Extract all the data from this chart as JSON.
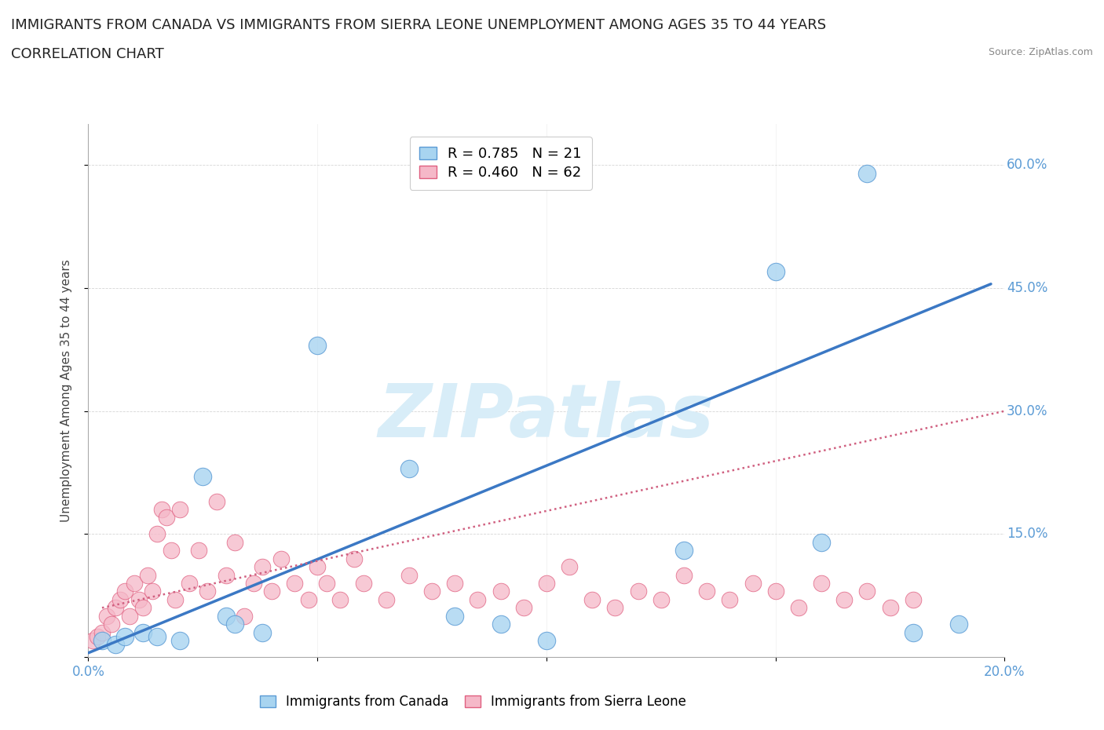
{
  "title_line1": "IMMIGRANTS FROM CANADA VS IMMIGRANTS FROM SIERRA LEONE UNEMPLOYMENT AMONG AGES 35 TO 44 YEARS",
  "title_line2": "CORRELATION CHART",
  "source_text": "Source: ZipAtlas.com",
  "ylabel": "Unemployment Among Ages 35 to 44 years",
  "xlim": [
    0.0,
    0.2
  ],
  "ylim": [
    0.0,
    0.65
  ],
  "xticks": [
    0.0,
    0.05,
    0.1,
    0.15,
    0.2
  ],
  "xtick_labels": [
    "0.0%",
    "",
    "",
    "",
    "20.0%"
  ],
  "yticks": [
    0.0,
    0.15,
    0.3,
    0.45,
    0.6
  ],
  "ytick_labels": [
    "",
    "15.0%",
    "30.0%",
    "45.0%",
    "60.0%"
  ],
  "legend_blue_text": "R = 0.785   N = 21",
  "legend_pink_text": "R = 0.460   N = 62",
  "legend_label_blue": "Immigrants from Canada",
  "legend_label_pink": "Immigrants from Sierra Leone",
  "blue_scatter_x": [
    0.003,
    0.006,
    0.008,
    0.012,
    0.015,
    0.02,
    0.025,
    0.03,
    0.032,
    0.038,
    0.05,
    0.07,
    0.08,
    0.09,
    0.1,
    0.13,
    0.15,
    0.16,
    0.17,
    0.18,
    0.19
  ],
  "blue_scatter_y": [
    0.02,
    0.015,
    0.025,
    0.03,
    0.025,
    0.02,
    0.22,
    0.05,
    0.04,
    0.03,
    0.38,
    0.23,
    0.05,
    0.04,
    0.02,
    0.13,
    0.47,
    0.14,
    0.59,
    0.03,
    0.04
  ],
  "pink_scatter_x": [
    0.001,
    0.002,
    0.003,
    0.004,
    0.005,
    0.006,
    0.007,
    0.008,
    0.009,
    0.01,
    0.011,
    0.012,
    0.013,
    0.014,
    0.015,
    0.016,
    0.017,
    0.018,
    0.019,
    0.02,
    0.022,
    0.024,
    0.026,
    0.028,
    0.03,
    0.032,
    0.034,
    0.036,
    0.038,
    0.04,
    0.042,
    0.045,
    0.048,
    0.05,
    0.052,
    0.055,
    0.058,
    0.06,
    0.065,
    0.07,
    0.075,
    0.08,
    0.085,
    0.09,
    0.095,
    0.1,
    0.105,
    0.11,
    0.115,
    0.12,
    0.125,
    0.13,
    0.135,
    0.14,
    0.145,
    0.15,
    0.155,
    0.16,
    0.165,
    0.17,
    0.175,
    0.18
  ],
  "pink_scatter_y": [
    0.02,
    0.025,
    0.03,
    0.05,
    0.04,
    0.06,
    0.07,
    0.08,
    0.05,
    0.09,
    0.07,
    0.06,
    0.1,
    0.08,
    0.15,
    0.18,
    0.17,
    0.13,
    0.07,
    0.18,
    0.09,
    0.13,
    0.08,
    0.19,
    0.1,
    0.14,
    0.05,
    0.09,
    0.11,
    0.08,
    0.12,
    0.09,
    0.07,
    0.11,
    0.09,
    0.07,
    0.12,
    0.09,
    0.07,
    0.1,
    0.08,
    0.09,
    0.07,
    0.08,
    0.06,
    0.09,
    0.11,
    0.07,
    0.06,
    0.08,
    0.07,
    0.1,
    0.08,
    0.07,
    0.09,
    0.08,
    0.06,
    0.09,
    0.07,
    0.08,
    0.06,
    0.07
  ],
  "blue_trend_x": [
    0.0,
    0.197
  ],
  "blue_trend_y": [
    0.005,
    0.455
  ],
  "pink_trend_x": [
    0.003,
    0.2
  ],
  "pink_trend_y": [
    0.06,
    0.3
  ],
  "blue_color": "#a8d4f0",
  "blue_edge_color": "#5b9bd5",
  "pink_color": "#f5b8c8",
  "pink_edge_color": "#e06080",
  "blue_line_color": "#3b78c4",
  "pink_line_color": "#d06080",
  "tick_color": "#5b9bd5",
  "background_color": "#ffffff",
  "watermark_text": "ZIPatlas",
  "watermark_color": "#d8edf8",
  "title_fontsize": 13,
  "axis_label_fontsize": 11,
  "tick_fontsize": 12,
  "source_fontsize": 9
}
